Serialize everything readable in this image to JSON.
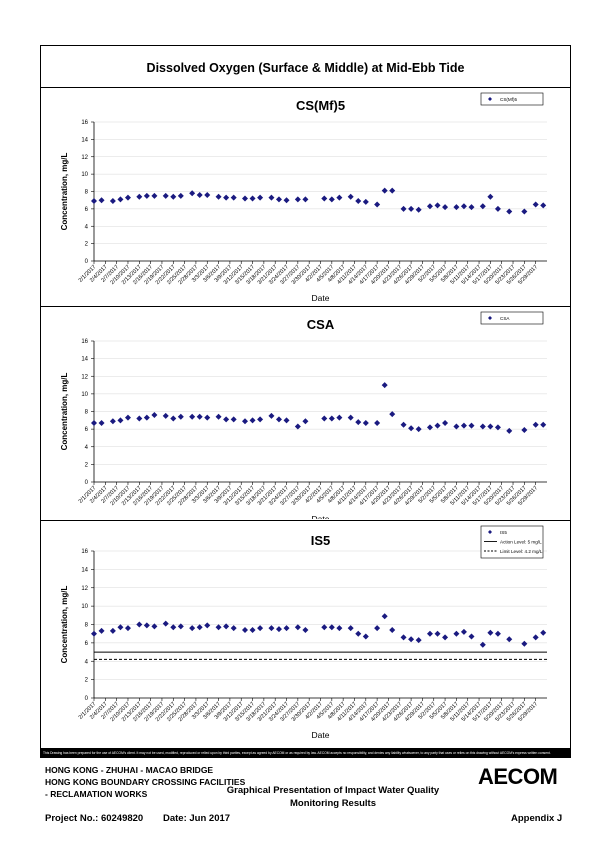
{
  "page": {
    "title": "Dissolved Oxygen (Surface & Middle) at Mid-Ebb Tide",
    "disclaimer": "This Drawing has been prepared for the use of AECOM's client. It may not be used, modified, reproduced or relied upon by third parties, except as agreed by AECOM or as required by law. AECOM accepts no responsibility, and denies any liability whatsoever, to any party that uses or relies on this drawing without AECOM's express written consent."
  },
  "footer": {
    "line1": "HONG KONG - ZHUHAI - MACAO BRIDGE",
    "line2": "HONG KONG BOUNDARY CROSSING FACILITIES",
    "line3": "- RECLAMATION WORKS",
    "center_line1": "Graphical Presentation of Impact Water Quality",
    "center_line2": "Monitoring Results",
    "project": "Project No.: 60249820",
    "date": "Date: Jun 2017",
    "appendix": "Appendix J",
    "logo": "AECOM"
  },
  "colors": {
    "marker": "#1a1a80",
    "line": "#000000",
    "grid": "#d8d8d8"
  },
  "chart_data": [
    {
      "type": "scatter",
      "title": "CS(Mf)5",
      "xlabel": "Date",
      "ylabel": "Concentration, mg/L",
      "ylim": [
        0,
        16
      ],
      "yticks": [
        0,
        2,
        4,
        6,
        8,
        10,
        12,
        14,
        16
      ],
      "grid": true,
      "legend_position": "top-right",
      "x_tick_labels": [
        "2/1/2017",
        "2/4/2017",
        "2/7/2017",
        "2/10/2017",
        "2/13/2017",
        "2/16/2017",
        "2/19/2017",
        "2/22/2017",
        "2/25/2017",
        "2/28/2017",
        "3/3/2017",
        "3/6/2017",
        "3/9/2017",
        "3/12/2017",
        "3/15/2017",
        "3/18/2017",
        "3/21/2017",
        "3/24/2017",
        "3/27/2017",
        "3/30/2017",
        "4/2/2017",
        "4/5/2017",
        "4/8/2017",
        "4/11/2017",
        "4/14/2017",
        "4/17/2017",
        "4/20/2017",
        "4/23/2017",
        "4/26/2017",
        "4/29/2017",
        "5/2/2017",
        "5/5/2017",
        "5/8/2017",
        "5/11/2017",
        "5/14/2017",
        "5/17/2017",
        "5/20/2017",
        "5/23/2017",
        "5/26/2017",
        "5/29/2017"
      ],
      "series": [
        {
          "name": "CS(Mf)5",
          "x": [
            "2/1/2017",
            "2/3/2017",
            "2/6/2017",
            "2/8/2017",
            "2/10/2017",
            "2/13/2017",
            "2/15/2017",
            "2/17/2017",
            "2/20/2017",
            "2/22/2017",
            "2/24/2017",
            "2/27/2017",
            "3/1/2017",
            "3/3/2017",
            "3/6/2017",
            "3/8/2017",
            "3/10/2017",
            "3/13/2017",
            "3/15/2017",
            "3/17/2017",
            "3/20/2017",
            "3/22/2017",
            "3/24/2017",
            "3/27/2017",
            "3/29/2017",
            "4/3/2017",
            "4/5/2017",
            "4/7/2017",
            "4/10/2017",
            "4/12/2017",
            "4/14/2017",
            "4/17/2017",
            "4/19/2017",
            "4/21/2017",
            "4/24/2017",
            "4/26/2017",
            "4/28/2017",
            "5/1/2017",
            "5/3/2017",
            "5/5/2017",
            "5/8/2017",
            "5/10/2017",
            "5/12/2017",
            "5/15/2017",
            "5/17/2017",
            "5/19/2017",
            "5/22/2017",
            "5/26/2017",
            "5/29/2017",
            "5/31/2017"
          ],
          "y": [
            6.9,
            7.0,
            6.9,
            7.1,
            7.3,
            7.4,
            7.5,
            7.5,
            7.5,
            7.4,
            7.5,
            7.8,
            7.6,
            7.6,
            7.4,
            7.3,
            7.3,
            7.2,
            7.2,
            7.3,
            7.3,
            7.1,
            7.0,
            7.1,
            7.1,
            7.2,
            7.1,
            7.3,
            7.4,
            6.9,
            6.8,
            6.5,
            8.1,
            8.1,
            6.0,
            6.0,
            5.9,
            6.3,
            6.4,
            6.2,
            6.2,
            6.3,
            6.2,
            6.3,
            7.4,
            6.0,
            5.7,
            5.7,
            6.5,
            6.4
          ]
        }
      ]
    },
    {
      "type": "scatter",
      "title": "CSA",
      "xlabel": "Date",
      "ylabel": "Concentration, mg/L",
      "ylim": [
        0,
        16
      ],
      "yticks": [
        0,
        2,
        4,
        6,
        8,
        10,
        12,
        14,
        16
      ],
      "grid": true,
      "legend_position": "top-right",
      "x_tick_labels": [
        "2/1/2017",
        "2/4/2017",
        "2/7/2017",
        "2/10/2017",
        "2/13/2017",
        "2/16/2017",
        "2/19/2017",
        "2/22/2017",
        "2/25/2017",
        "2/28/2017",
        "3/3/2017",
        "3/6/2017",
        "3/9/2017",
        "3/12/2017",
        "3/15/2017",
        "3/18/2017",
        "3/21/2017",
        "3/24/2017",
        "3/27/2017",
        "3/30/2017",
        "4/2/2017",
        "4/5/2017",
        "4/8/2017",
        "4/11/2017",
        "4/14/2017",
        "4/17/2017",
        "4/20/2017",
        "4/23/2017",
        "4/26/2017",
        "4/29/2017",
        "5/2/2017",
        "5/5/2017",
        "5/8/2017",
        "5/11/2017",
        "5/14/2017",
        "5/17/2017",
        "5/20/2017",
        "5/23/2017",
        "5/26/2017",
        "5/29/2017"
      ],
      "series": [
        {
          "name": "CSA",
          "x": [
            "2/1/2017",
            "2/3/2017",
            "2/6/2017",
            "2/8/2017",
            "2/10/2017",
            "2/13/2017",
            "2/15/2017",
            "2/17/2017",
            "2/20/2017",
            "2/22/2017",
            "2/24/2017",
            "2/27/2017",
            "3/1/2017",
            "3/3/2017",
            "3/6/2017",
            "3/8/2017",
            "3/10/2017",
            "3/13/2017",
            "3/15/2017",
            "3/17/2017",
            "3/20/2017",
            "3/22/2017",
            "3/24/2017",
            "3/27/2017",
            "3/29/2017",
            "4/3/2017",
            "4/5/2017",
            "4/7/2017",
            "4/10/2017",
            "4/12/2017",
            "4/14/2017",
            "4/17/2017",
            "4/19/2017",
            "4/21/2017",
            "4/24/2017",
            "4/26/2017",
            "4/28/2017",
            "5/1/2017",
            "5/3/2017",
            "5/5/2017",
            "5/8/2017",
            "5/10/2017",
            "5/12/2017",
            "5/15/2017",
            "5/17/2017",
            "5/19/2017",
            "5/22/2017",
            "5/26/2017",
            "5/29/2017",
            "5/31/2017"
          ],
          "y": [
            6.7,
            6.7,
            6.9,
            7.0,
            7.3,
            7.2,
            7.3,
            7.6,
            7.5,
            7.2,
            7.4,
            7.4,
            7.4,
            7.3,
            7.4,
            7.1,
            7.1,
            6.9,
            7.0,
            7.1,
            7.5,
            7.1,
            7.0,
            6.3,
            6.9,
            7.2,
            7.2,
            7.3,
            7.3,
            6.8,
            6.7,
            6.7,
            11.0,
            7.7,
            6.5,
            6.1,
            6.0,
            6.2,
            6.4,
            6.7,
            6.3,
            6.4,
            6.4,
            6.3,
            6.3,
            6.2,
            5.8,
            5.9,
            6.5,
            6.5
          ]
        }
      ]
    },
    {
      "type": "scatter",
      "title": "IS5",
      "xlabel": "Date",
      "ylabel": "Concentration, mg/L",
      "ylim": [
        0,
        16
      ],
      "yticks": [
        0,
        2,
        4,
        6,
        8,
        10,
        12,
        14,
        16
      ],
      "grid": true,
      "legend_position": "top-right",
      "x_tick_labels": [
        "2/1/2017",
        "2/4/2017",
        "2/7/2017",
        "2/10/2017",
        "2/13/2017",
        "2/16/2017",
        "2/19/2017",
        "2/22/2017",
        "2/25/2017",
        "2/28/2017",
        "3/3/2017",
        "3/6/2017",
        "3/9/2017",
        "3/12/2017",
        "3/15/2017",
        "3/18/2017",
        "3/21/2017",
        "3/24/2017",
        "3/27/2017",
        "3/30/2017",
        "4/2/2017",
        "4/5/2017",
        "4/8/2017",
        "4/11/2017",
        "4/14/2017",
        "4/17/2017",
        "4/20/2017",
        "4/23/2017",
        "4/26/2017",
        "4/29/2017",
        "5/2/2017",
        "5/5/2017",
        "5/8/2017",
        "5/11/2017",
        "5/14/2017",
        "5/17/2017",
        "5/20/2017",
        "5/23/2017",
        "5/26/2017",
        "5/29/2017"
      ],
      "series": [
        {
          "name": "IS5",
          "x": [
            "2/1/2017",
            "2/3/2017",
            "2/6/2017",
            "2/8/2017",
            "2/10/2017",
            "2/13/2017",
            "2/15/2017",
            "2/17/2017",
            "2/20/2017",
            "2/22/2017",
            "2/24/2017",
            "2/27/2017",
            "3/1/2017",
            "3/3/2017",
            "3/6/2017",
            "3/8/2017",
            "3/10/2017",
            "3/13/2017",
            "3/15/2017",
            "3/17/2017",
            "3/20/2017",
            "3/22/2017",
            "3/24/2017",
            "3/27/2017",
            "3/29/2017",
            "4/3/2017",
            "4/5/2017",
            "4/7/2017",
            "4/10/2017",
            "4/12/2017",
            "4/14/2017",
            "4/17/2017",
            "4/19/2017",
            "4/21/2017",
            "4/24/2017",
            "4/26/2017",
            "4/28/2017",
            "5/1/2017",
            "5/3/2017",
            "5/5/2017",
            "5/8/2017",
            "5/10/2017",
            "5/12/2017",
            "5/15/2017",
            "5/17/2017",
            "5/19/2017",
            "5/22/2017",
            "5/26/2017",
            "5/29/2017",
            "5/31/2017"
          ],
          "y": [
            7.0,
            7.3,
            7.3,
            7.7,
            7.6,
            8.0,
            7.9,
            7.8,
            8.1,
            7.7,
            7.8,
            7.6,
            7.7,
            7.9,
            7.7,
            7.8,
            7.6,
            7.4,
            7.4,
            7.6,
            7.6,
            7.5,
            7.6,
            7.7,
            7.4,
            7.7,
            7.7,
            7.6,
            7.6,
            7.0,
            6.7,
            7.6,
            8.9,
            7.4,
            6.6,
            6.4,
            6.3,
            7.0,
            7.0,
            6.6,
            7.0,
            7.2,
            6.7,
            5.8,
            7.1,
            7.0,
            6.4,
            5.9,
            6.6,
            7.1
          ]
        },
        {
          "name": "Action Level: 5 mg/L",
          "y_const": 5
        },
        {
          "name": "Limit Level: 4.2 mg/L",
          "y_const": 4.2
        }
      ]
    }
  ]
}
